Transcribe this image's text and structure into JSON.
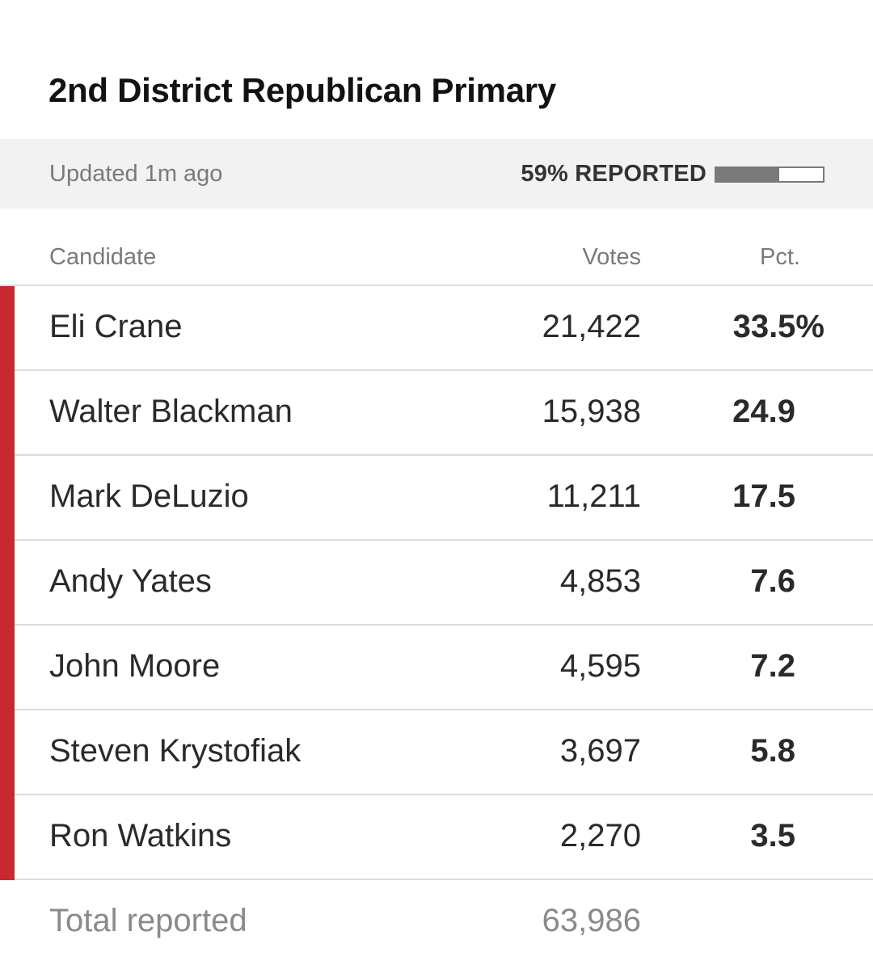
{
  "title": "2nd District Republican Primary",
  "status": {
    "updated": "Updated 1m ago",
    "reported_label": "59% REPORTED",
    "reported_fraction": 0.59
  },
  "table": {
    "headers": {
      "candidate": "Candidate",
      "votes": "Votes",
      "pct": "Pct."
    },
    "rows": [
      {
        "name": "Eli Crane",
        "votes": "21,422",
        "pct": "33.5%"
      },
      {
        "name": "Walter Blackman",
        "votes": "15,938",
        "pct": "24.9"
      },
      {
        "name": "Mark DeLuzio",
        "votes": "11,211",
        "pct": "17.5"
      },
      {
        "name": "Andy Yates",
        "votes": "4,853",
        "pct": "7.6"
      },
      {
        "name": "John Moore",
        "votes": "4,595",
        "pct": "7.2"
      },
      {
        "name": "Steven Krystofiak",
        "votes": "3,697",
        "pct": "5.8"
      },
      {
        "name": "Ron Watkins",
        "votes": "2,270",
        "pct": "3.5"
      }
    ],
    "total": {
      "label": "Total reported",
      "votes": "63,986"
    }
  },
  "colors": {
    "party_bar": "#c9282e",
    "progress": "#7a7a7a"
  }
}
